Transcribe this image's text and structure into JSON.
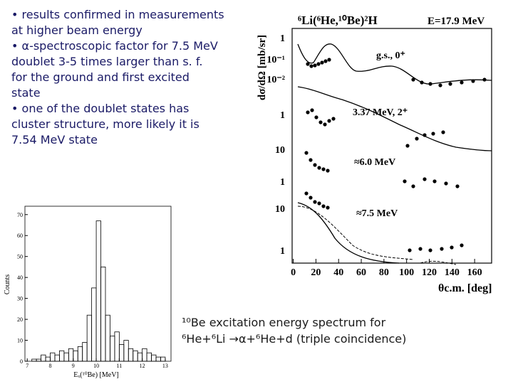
{
  "bullets": [
    "• results confirmed in measurements",
    "at higher beam energy",
    "• α-spectroscopic factor for 7.5 MeV",
    "doublet 3-5 times larger than s. f.",
    "for the ground and first excited",
    "state",
    "• one of the doublet states has",
    "cluster structure, more likely it is",
    "7.54 MeV state"
  ],
  "angular_figure": {
    "title": "⁶Li(⁶He,¹⁰Be)²H",
    "energy": "E=17.9 MeV",
    "y_label": "dσ/dΩ [mb/sr]",
    "x_label": "θc.m. [deg]",
    "y_tick_labels": [
      "1",
      "10⁻¹",
      "10⁻²",
      "1",
      "10",
      "1",
      "10",
      "1"
    ],
    "panel_labels": [
      "g.s., 0⁺",
      "3.37 MeV, 2⁺",
      "≈6.0 MeV",
      "≈7.5 MeV"
    ],
    "xlim": [
      -1,
      175
    ],
    "xticks": [
      0,
      20,
      40,
      60,
      80,
      100,
      120,
      140,
      160
    ]
  },
  "histogram": {
    "y_label": "Counts",
    "x_label": "Eₓ(¹⁰Be)  [MeV]",
    "bins": [
      7.0,
      7.2,
      7.4,
      7.6,
      7.8,
      8.0,
      8.2,
      8.4,
      8.6,
      8.8,
      9.0,
      9.2,
      9.4,
      9.6,
      9.8,
      10.0,
      10.2,
      10.4,
      10.6,
      10.8,
      11.0,
      11.2,
      11.4,
      11.6,
      11.8,
      12.0,
      12.2,
      12.4,
      12.6,
      12.8,
      13.0
    ],
    "counts": [
      0,
      1,
      1,
      3,
      2,
      4,
      3,
      5,
      4,
      6,
      5,
      7,
      9,
      22,
      35,
      67,
      45,
      22,
      12,
      14,
      8,
      10,
      6,
      5,
      4,
      6,
      4,
      3,
      2,
      2
    ],
    "xlim": [
      6.9,
      13.25
    ],
    "ylim": [
      0,
      74
    ],
    "xticks": [
      7,
      8,
      9,
      10,
      11,
      12,
      13
    ],
    "yticks": [
      0,
      10,
      20,
      30,
      40,
      50,
      60,
      70
    ]
  },
  "caption": [
    "¹⁰Be excitation energy spectrum for",
    "⁶He+⁶Li →α+⁶He+d (triple coincidence)"
  ]
}
